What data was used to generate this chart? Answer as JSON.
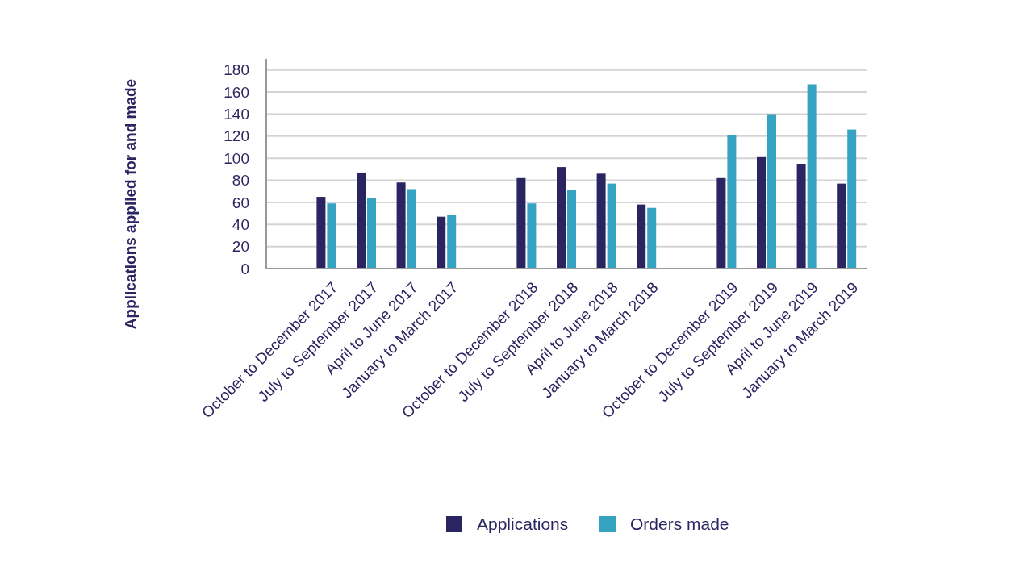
{
  "chart_data": {
    "type": "bar",
    "ylabel": "Applications applied for and made",
    "categories": [
      null,
      "October to December 2017",
      "July to September 2017",
      "April to June 2017",
      "January to March 2017",
      null,
      "October to December 2018",
      "July to September 2018",
      "April to June 2018",
      "January to March 2018",
      null,
      "October to December 2019",
      "July to September 2019",
      "April to June 2019",
      "January to March 2019"
    ],
    "series": [
      {
        "name": "Applications",
        "color": "#2a2560",
        "values": [
          null,
          65,
          87,
          78,
          47,
          null,
          82,
          92,
          86,
          58,
          null,
          82,
          101,
          95,
          77
        ]
      },
      {
        "name": "Orders made",
        "color": "#37a3c3",
        "values": [
          null,
          59,
          64,
          72,
          49,
          null,
          59,
          71,
          77,
          55,
          null,
          121,
          140,
          167,
          126
        ]
      }
    ],
    "ylim": [
      0,
      190
    ],
    "yticks": [
      0,
      20,
      40,
      60,
      80,
      100,
      120,
      140,
      160,
      180
    ],
    "grid": "y",
    "legend": "bottom"
  }
}
